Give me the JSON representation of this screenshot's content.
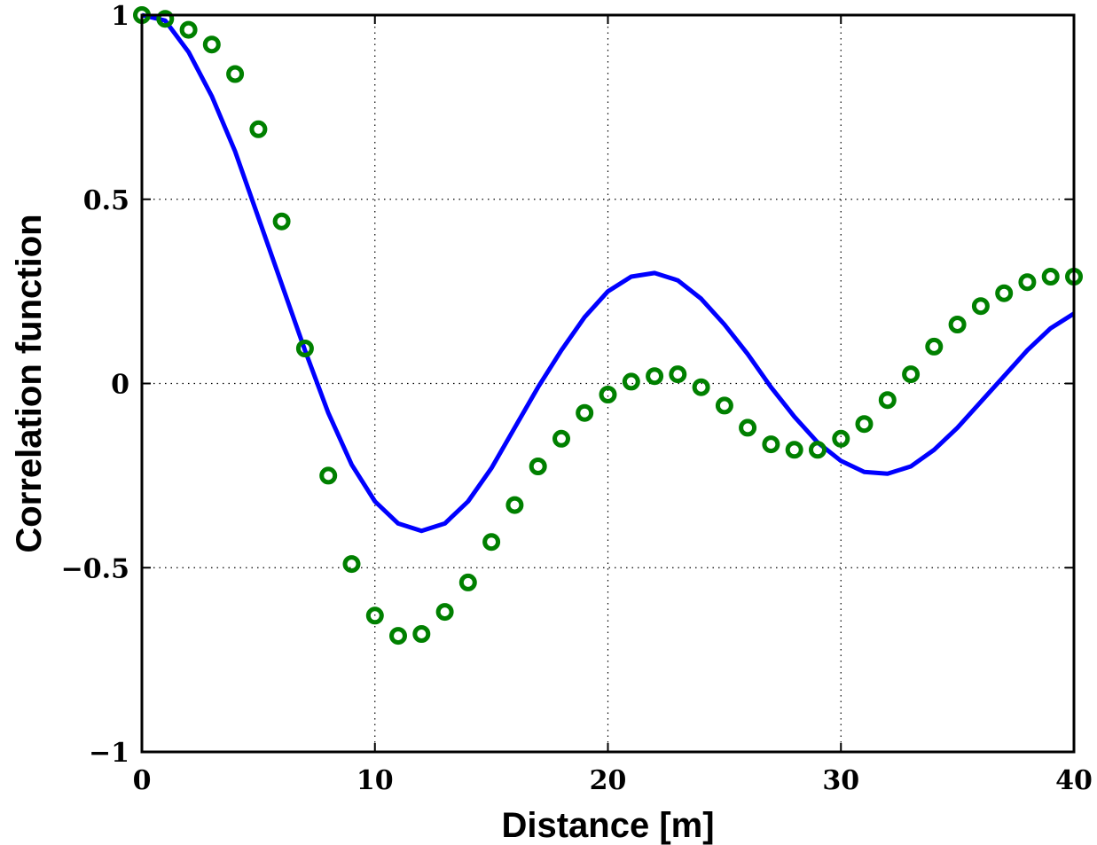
{
  "chart_data": {
    "type": "line",
    "title": "",
    "xlabel": "Distance [m]",
    "ylabel": "Correlation function",
    "xlim": [
      0,
      40
    ],
    "ylim": [
      -1,
      1
    ],
    "x_ticks": [
      0,
      10,
      20,
      30,
      40
    ],
    "y_ticks": [
      -1,
      -0.5,
      0,
      0.5,
      1
    ],
    "x_tick_labels": [
      "0",
      "10",
      "20",
      "30",
      "40"
    ],
    "y_tick_labels": [
      "−1",
      "−0.5",
      "0",
      "0.5",
      "1"
    ],
    "grid": true,
    "legend": "none",
    "series": [
      {
        "style": "line",
        "color": "#0000FF",
        "x": [
          0,
          1,
          2,
          3,
          4,
          5,
          6,
          7,
          8,
          9,
          10,
          11,
          12,
          13,
          14,
          15,
          16,
          17,
          18,
          19,
          20,
          21,
          22,
          23,
          24,
          25,
          26,
          27,
          28,
          29,
          30,
          31,
          32,
          33,
          34,
          35,
          36,
          37,
          38,
          39,
          40
        ],
        "y": [
          1.0,
          0.985,
          0.9,
          0.78,
          0.63,
          0.45,
          0.27,
          0.09,
          -0.08,
          -0.22,
          -0.32,
          -0.38,
          -0.4,
          -0.38,
          -0.32,
          -0.23,
          -0.12,
          -0.01,
          0.09,
          0.18,
          0.25,
          0.29,
          0.3,
          0.28,
          0.23,
          0.16,
          0.08,
          -0.01,
          -0.09,
          -0.16,
          -0.21,
          -0.24,
          -0.245,
          -0.225,
          -0.18,
          -0.12,
          -0.05,
          0.02,
          0.09,
          0.15,
          0.19
        ]
      },
      {
        "style": "circle-markers",
        "color": "#008000",
        "x": [
          0,
          1,
          2,
          3,
          4,
          5,
          6,
          7,
          8,
          9,
          10,
          11,
          12,
          13,
          14,
          15,
          16,
          17,
          18,
          19,
          20,
          21,
          22,
          23,
          24,
          25,
          26,
          27,
          28,
          29,
          30,
          31,
          32,
          33,
          34,
          35,
          36,
          37,
          38,
          39,
          40
        ],
        "y": [
          1.0,
          0.99,
          0.96,
          0.92,
          0.84,
          0.69,
          0.44,
          0.095,
          -0.25,
          -0.49,
          -0.63,
          -0.685,
          -0.68,
          -0.62,
          -0.54,
          -0.43,
          -0.33,
          -0.225,
          -0.15,
          -0.08,
          -0.03,
          0.005,
          0.02,
          0.025,
          -0.01,
          -0.06,
          -0.12,
          -0.165,
          -0.18,
          -0.18,
          -0.15,
          -0.11,
          -0.045,
          0.025,
          0.1,
          0.16,
          0.21,
          0.245,
          0.275,
          0.29,
          0.29
        ]
      }
    ]
  }
}
